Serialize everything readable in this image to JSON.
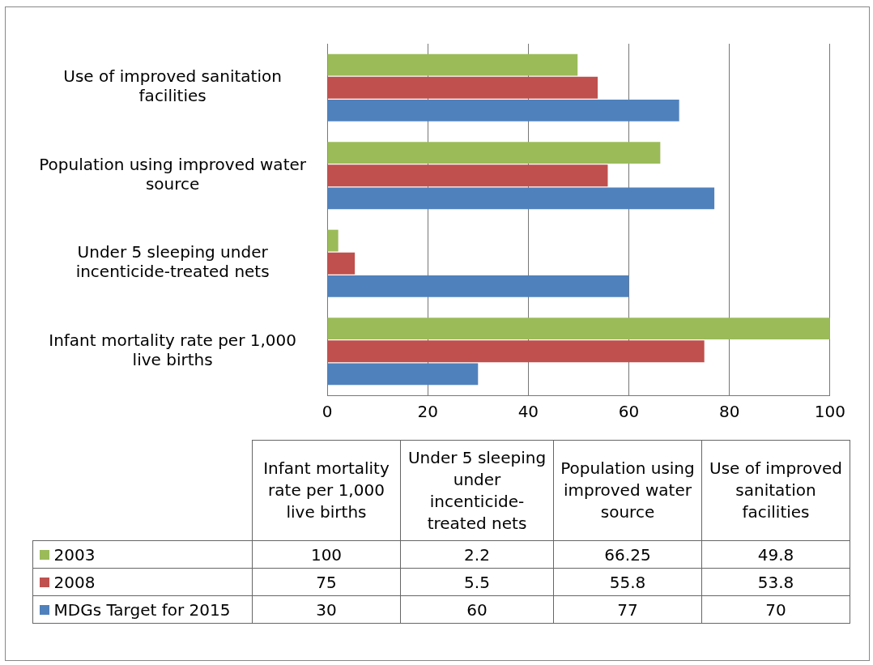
{
  "chart_data": [
    {
      "type": "bar",
      "orientation": "horizontal",
      "categories": [
        "Use of improved sanitation facilities",
        "Population using improved water source",
        "Under 5 sleeping under incenticide-treated nets",
        "Infant mortality rate per 1,000 live births"
      ],
      "series": [
        {
          "name": "2003",
          "color": "#9bbb59",
          "values": [
            49.8,
            66.25,
            2.2,
            100
          ]
        },
        {
          "name": "2008",
          "color": "#c0504d",
          "values": [
            53.8,
            55.8,
            5.5,
            75
          ]
        },
        {
          "name": "MDGs Target for 2015",
          "color": "#4f81bd",
          "values": [
            70,
            77,
            60,
            30
          ]
        }
      ],
      "xlim": [
        0,
        100
      ],
      "xticks": [
        0,
        20,
        40,
        60,
        80,
        100
      ],
      "grid": "x",
      "legend": "bottom"
    },
    {
      "type": "other",
      "categories": [
        "Infant mortality rate per 1,000 live births",
        "Under 5 sleeping under incenticide-treated nets",
        "Population using improved water source",
        "Use of improved sanitation facilities"
      ],
      "series": [
        {
          "values": [
            100,
            2.2,
            66.25,
            49.8
          ]
        },
        {
          "values": [
            75,
            5.5,
            55.8,
            53.8
          ]
        },
        {
          "values": [
            30,
            60,
            77,
            70
          ]
        }
      ],
      "data_labels": true
    }
  ]
}
